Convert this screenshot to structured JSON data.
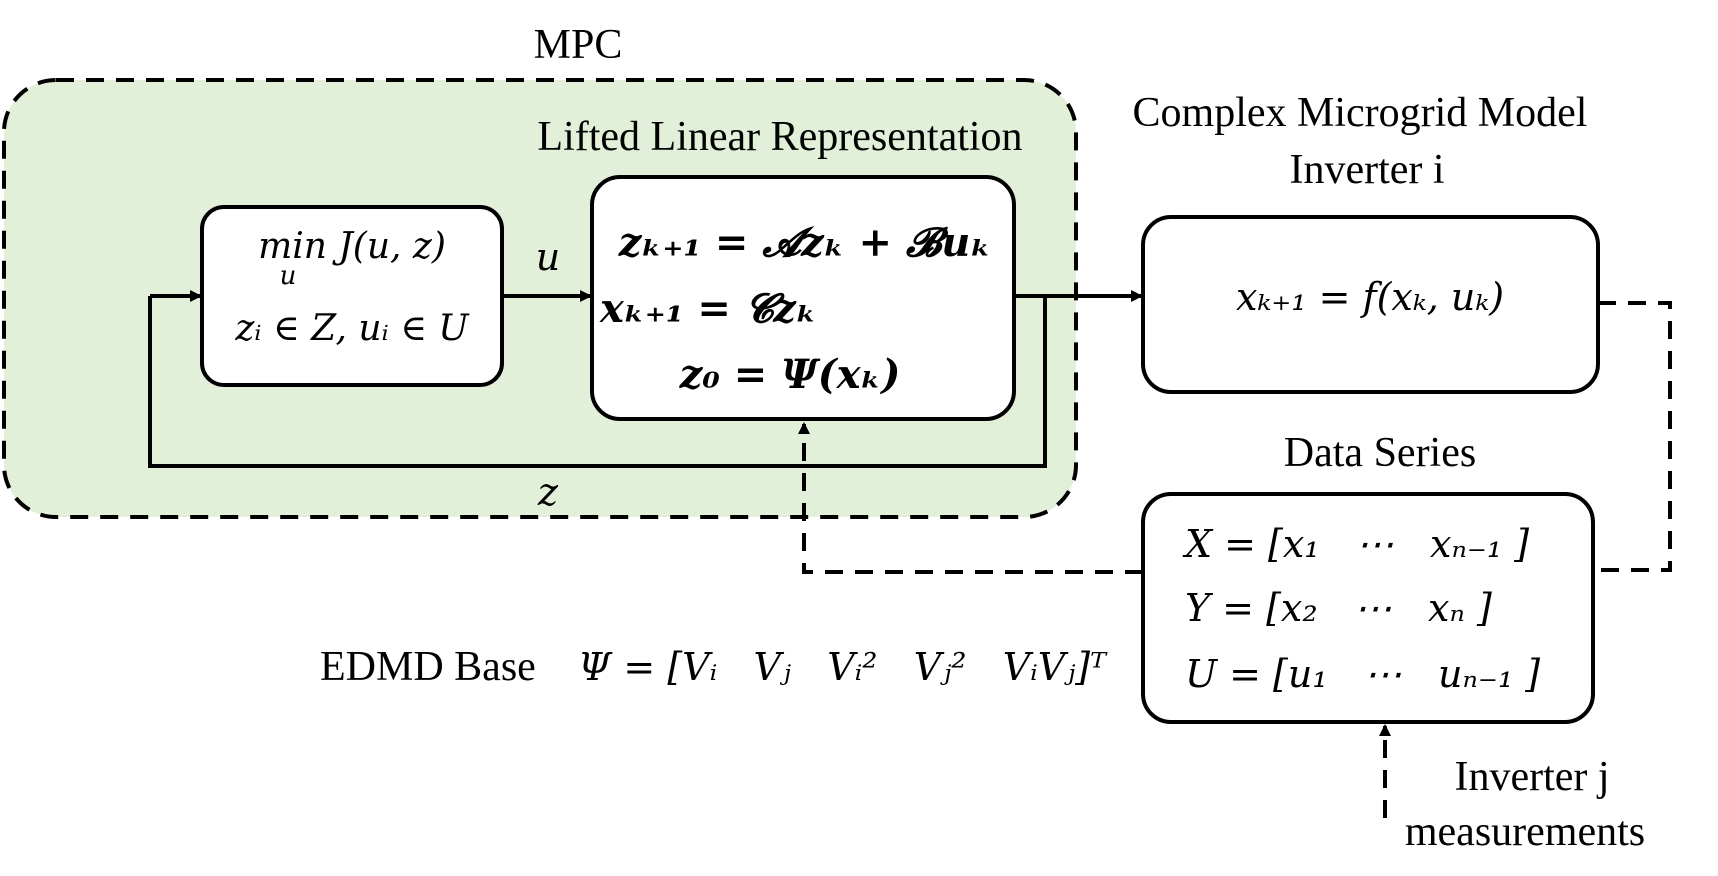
{
  "labels": {
    "mpc": "MPC",
    "lifted": "Lifted Linear Representation",
    "model_line1": "Complex Microgrid Model",
    "model_line2": "Inverter i",
    "data_series": "Data Series",
    "edmd": "EDMD Base",
    "inverter_j_line1": "Inverter j",
    "inverter_j_line2": "measurements",
    "signal_u": "u",
    "signal_z": "z"
  },
  "optimizer": {
    "objective": "min J(u, z)",
    "objective_sub": "u",
    "constraints": "zᵢ ∈ Z, uᵢ ∈ U"
  },
  "lifted_model": {
    "eq1": "zₖ₊₁ = 𝓐zₖ + 𝓑uₖ",
    "eq2": "xₖ₊₁ = 𝓒zₖ",
    "eq3": "z₀ = Ψ(xₖ)"
  },
  "plant": {
    "eq": "xₖ₊₁ = f(xₖ, uₖ)"
  },
  "data_matrices": {
    "X": "X = [x₁   ⋯   xₙ₋₁ ]",
    "Y": "Y = [x₂   ⋯   xₙ ]",
    "U": "U = [u₁   ⋯   uₙ₋₁ ]"
  },
  "edmd_basis": "Ψ = [Vᵢ   Vⱼ   Vᵢ²   Vⱼ²   VᵢVⱼ]ᵀ",
  "colors": {
    "mpc_fill": "#e2efd9",
    "stroke": "#000000",
    "background": "#ffffff"
  }
}
